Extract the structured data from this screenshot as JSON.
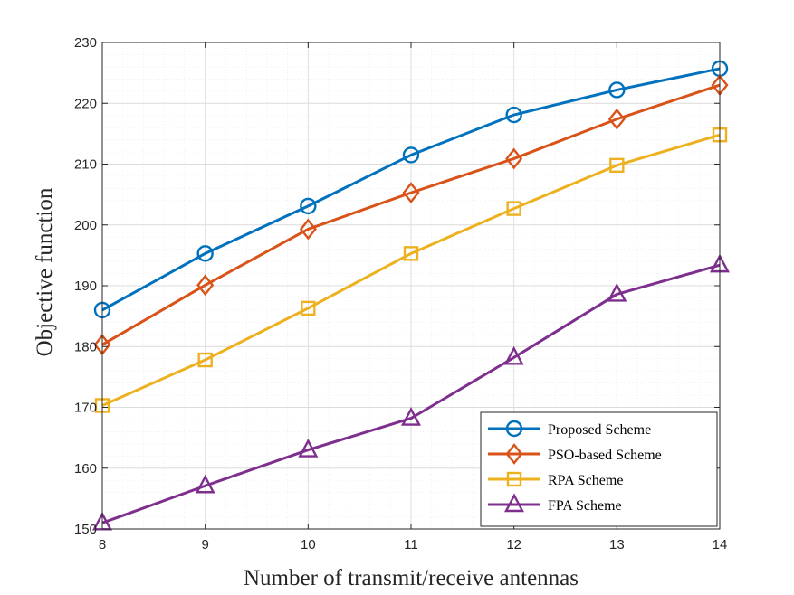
{
  "chart_data": {
    "type": "line",
    "title": "",
    "xlabel": "Number of transmit/receive antennas",
    "ylabel": "Objective function",
    "x": [
      8,
      9,
      10,
      11,
      12,
      13,
      14
    ],
    "xlim": [
      8,
      14
    ],
    "ylim": [
      150,
      230
    ],
    "xticks": [
      8,
      9,
      10,
      11,
      12,
      13,
      14
    ],
    "yticks": [
      150,
      160,
      170,
      180,
      190,
      200,
      210,
      220,
      230
    ],
    "grid": true,
    "minor_grid": true,
    "legend_position": "bottom-right",
    "series": [
      {
        "name": "Proposed Scheme",
        "marker": "circle",
        "color": "#0072BD",
        "values": [
          186.0,
          195.3,
          203.1,
          211.5,
          218.1,
          222.2,
          225.7
        ]
      },
      {
        "name": "PSO-based Scheme",
        "marker": "diamond",
        "color": "#D95319",
        "values": [
          180.3,
          190.1,
          199.3,
          205.3,
          210.9,
          217.4,
          223.0
        ]
      },
      {
        "name": "RPA Scheme",
        "marker": "square",
        "color": "#EDB120",
        "values": [
          170.3,
          177.8,
          186.3,
          195.3,
          202.7,
          209.8,
          214.8
        ]
      },
      {
        "name": "FPA Scheme",
        "marker": "triangle",
        "color": "#7E2F8E",
        "values": [
          151.0,
          157.1,
          163.0,
          168.2,
          178.2,
          188.6,
          193.4
        ]
      }
    ]
  }
}
